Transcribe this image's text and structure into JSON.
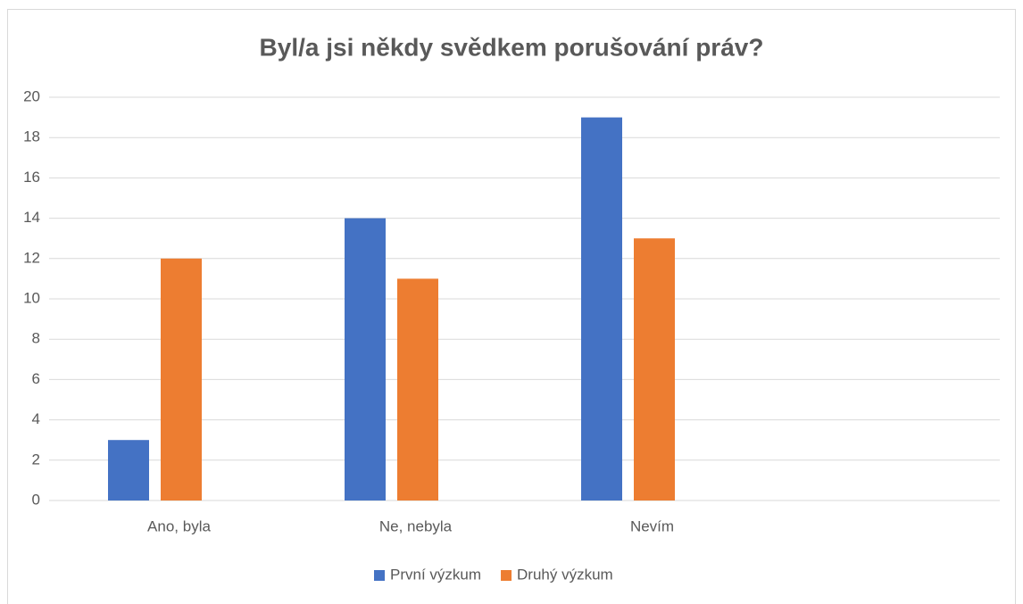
{
  "chart_data": {
    "type": "bar",
    "title": "Byl/a jsi někdy svědkem porušování práv?",
    "categories": [
      "Ano, byla",
      "Ne, nebyla",
      "Nevím",
      null
    ],
    "series": [
      {
        "name": "První výzkum",
        "color": "#4472c4",
        "values": [
          3,
          14,
          19,
          null
        ]
      },
      {
        "name": "Druhý výzkum",
        "color": "#ed7d31",
        "values": [
          12,
          11,
          13,
          null
        ]
      }
    ],
    "ylim": [
      0,
      20
    ],
    "yticks": [
      0,
      2,
      4,
      6,
      8,
      10,
      12,
      14,
      16,
      18,
      20
    ],
    "grid": true,
    "legend": "bottom"
  }
}
